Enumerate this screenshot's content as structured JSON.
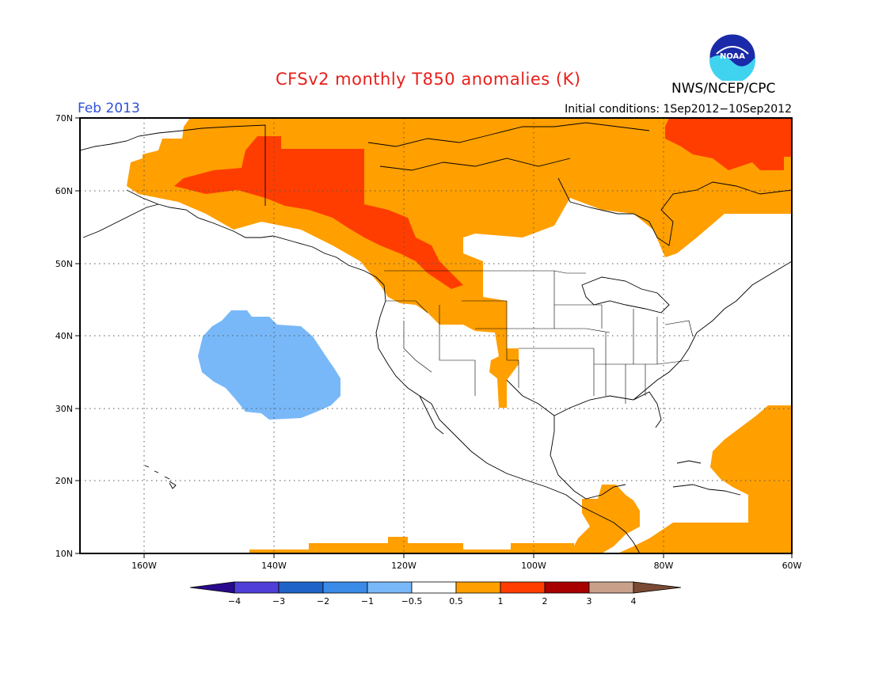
{
  "title": "CFSv2 monthly T850 anomalies (K)",
  "valid_month": "Feb 2013",
  "initial_conditions": "Initial conditions: 1Sep2012−10Sep2012",
  "agency": "NWS/NCEP/CPC",
  "logo_text": "NOAA",
  "map": {
    "lat_labels": [
      "70N",
      "60N",
      "50N",
      "40N",
      "30N",
      "20N",
      "10N"
    ],
    "lon_labels": [
      "160W",
      "140W",
      "120W",
      "100W",
      "80W",
      "60W"
    ],
    "gridlines": "dotted"
  },
  "legend": {
    "tick_labels": [
      "−4",
      "−3",
      "−2",
      "−1",
      "−0.5",
      "0.5",
      "1",
      "2",
      "3",
      "4"
    ],
    "colors": {
      "lt_-4": "#2a0a8c",
      "-4_-3": "#4f3fd6",
      "-3_-2": "#1f63c9",
      "-2_-1": "#3a8ae8",
      "-1_-0.5": "#78b8f8",
      "-0.5_0.5": "#ffffff",
      "0.5_1": "#ff9f00",
      "1_2": "#ff3d00",
      "2_3": "#a80000",
      "3_4": "#c9a08a",
      "gt_4": "#7a4a34"
    }
  }
}
